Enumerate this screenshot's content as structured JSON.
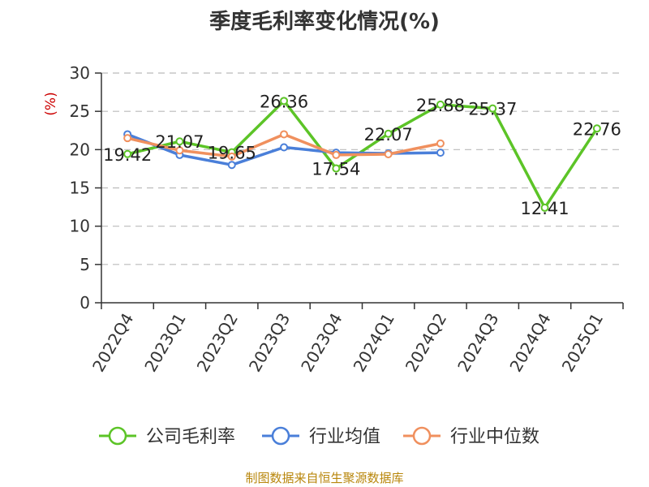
{
  "chart_data": {
    "type": "line",
    "title": "季度毛利率变化情况(%)",
    "ylabel": "(%)",
    "ylim": [
      0,
      30
    ],
    "yticks": [
      0,
      5,
      10,
      15,
      20,
      25,
      30
    ],
    "grid": true,
    "legend_position": "bottom",
    "categories": [
      "2022Q4",
      "2023Q1",
      "2023Q2",
      "2023Q3",
      "2023Q4",
      "2024Q1",
      "2024Q2",
      "2024Q3",
      "2024Q4",
      "2025Q1"
    ],
    "series": [
      {
        "name": "公司毛利率",
        "color": "#5cc427",
        "values": [
          19.42,
          21.07,
          19.65,
          26.36,
          17.54,
          22.07,
          25.88,
          25.37,
          12.41,
          22.76
        ],
        "labels": [
          "19.42",
          "21.07",
          "19.65",
          "26.36",
          "17.54",
          "22.07",
          "25.88",
          "25.37",
          "12.41",
          "22.76"
        ]
      },
      {
        "name": "行业均值",
        "color": "#4a7fd9",
        "values": [
          22.0,
          19.3,
          18.0,
          20.3,
          19.6,
          19.5,
          19.6,
          null,
          null,
          null
        ]
      },
      {
        "name": "行业中位数",
        "color": "#f0905e",
        "values": [
          21.5,
          19.9,
          19.1,
          22.0,
          19.3,
          19.4,
          20.8,
          null,
          null,
          null
        ]
      }
    ]
  },
  "source": "制图数据来自恒生聚源数据库"
}
